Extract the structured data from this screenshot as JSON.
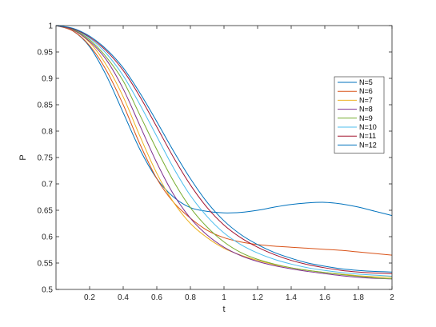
{
  "chart_data": {
    "type": "line",
    "title": "",
    "xlabel": "t",
    "ylabel": "P",
    "xlim": [
      0,
      2
    ],
    "ylim": [
      0.5,
      1
    ],
    "xticks": [
      0.2,
      0.4,
      0.6,
      0.8,
      1,
      1.2,
      1.4,
      1.6,
      1.8,
      2
    ],
    "yticks": [
      0.5,
      0.55,
      0.6,
      0.65,
      0.7,
      0.75,
      0.8,
      0.85,
      0.9,
      0.95,
      1
    ],
    "xtick_labels": [
      "0.2",
      "0.4",
      "0.6",
      "0.8",
      "1",
      "1.2",
      "1.4",
      "1.6",
      "1.8",
      "2"
    ],
    "ytick_labels": [
      "0.5",
      "0.55",
      "0.6",
      "0.65",
      "0.7",
      "0.75",
      "0.8",
      "0.85",
      "0.9",
      "0.95",
      "1"
    ],
    "grid": false,
    "legend_position": "top-right",
    "x": [
      0,
      0.1,
      0.2,
      0.3,
      0.4,
      0.5,
      0.6,
      0.7,
      0.8,
      0.9,
      1.0,
      1.1,
      1.2,
      1.3,
      1.4,
      1.5,
      1.6,
      1.7,
      1.8,
      1.9,
      2.0
    ],
    "series": [
      {
        "name": "N=5",
        "color": "#0072BD",
        "values": [
          1.0,
          0.99,
          0.96,
          0.905,
          0.835,
          0.765,
          0.71,
          0.675,
          0.655,
          0.648,
          0.645,
          0.646,
          0.65,
          0.656,
          0.661,
          0.664,
          0.665,
          0.662,
          0.656,
          0.648,
          0.64
        ]
      },
      {
        "name": "N=6",
        "color": "#D95319",
        "values": [
          1.0,
          0.99,
          0.962,
          0.915,
          0.85,
          0.775,
          0.71,
          0.665,
          0.635,
          0.612,
          0.598,
          0.59,
          0.585,
          0.582,
          0.58,
          0.578,
          0.576,
          0.574,
          0.571,
          0.568,
          0.565
        ]
      },
      {
        "name": "N=7",
        "color": "#EDB120",
        "values": [
          1.0,
          0.992,
          0.968,
          0.925,
          0.865,
          0.79,
          0.72,
          0.665,
          0.625,
          0.598,
          0.578,
          0.565,
          0.555,
          0.547,
          0.541,
          0.536,
          0.532,
          0.529,
          0.526,
          0.524,
          0.523
        ]
      },
      {
        "name": "N=8",
        "color": "#7E2F8E",
        "values": [
          1.0,
          0.992,
          0.97,
          0.935,
          0.88,
          0.81,
          0.74,
          0.68,
          0.635,
          0.603,
          0.58,
          0.564,
          0.553,
          0.545,
          0.539,
          0.534,
          0.53,
          0.526,
          0.523,
          0.521,
          0.52
        ]
      },
      {
        "name": "N=9",
        "color": "#77AC30",
        "values": [
          1.0,
          0.993,
          0.973,
          0.94,
          0.895,
          0.83,
          0.765,
          0.705,
          0.655,
          0.618,
          0.59,
          0.57,
          0.557,
          0.548,
          0.541,
          0.536,
          0.532,
          0.528,
          0.525,
          0.522,
          0.52
        ]
      },
      {
        "name": "N=10",
        "color": "#4DBEEE",
        "values": [
          1.0,
          0.994,
          0.976,
          0.947,
          0.905,
          0.85,
          0.79,
          0.73,
          0.678,
          0.638,
          0.607,
          0.585,
          0.569,
          0.557,
          0.548,
          0.541,
          0.536,
          0.532,
          0.529,
          0.527,
          0.525
        ]
      },
      {
        "name": "N=11",
        "color": "#A2142F",
        "values": [
          1.0,
          0.994,
          0.978,
          0.952,
          0.915,
          0.865,
          0.808,
          0.75,
          0.698,
          0.655,
          0.622,
          0.598,
          0.58,
          0.566,
          0.555,
          0.547,
          0.541,
          0.536,
          0.533,
          0.531,
          0.53
        ]
      },
      {
        "name": "N=12",
        "color": "#0072BD",
        "values": [
          1.0,
          0.995,
          0.98,
          0.955,
          0.92,
          0.872,
          0.818,
          0.762,
          0.71,
          0.665,
          0.63,
          0.604,
          0.585,
          0.57,
          0.559,
          0.55,
          0.544,
          0.539,
          0.536,
          0.534,
          0.533
        ]
      }
    ]
  }
}
